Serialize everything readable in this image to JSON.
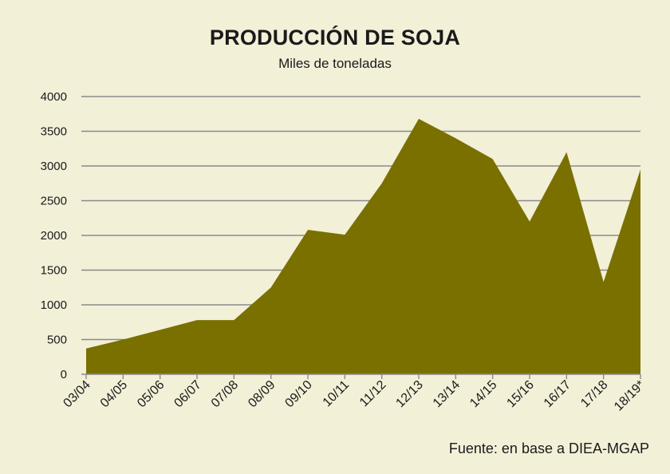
{
  "chart_data": {
    "type": "area",
    "title": "PRODUCCIÓN DE SOJA",
    "subtitle": "Miles de toneladas",
    "categories": [
      "03/04",
      "04/05",
      "05/06",
      "06/07",
      "07/08",
      "08/09",
      "09/10",
      "10/11",
      "11/12",
      "12/13",
      "13/14",
      "14/15",
      "15/16",
      "16/17",
      "17/18",
      "18/19*"
    ],
    "values": [
      370,
      500,
      640,
      780,
      780,
      1250,
      2080,
      2010,
      2750,
      3680,
      3400,
      3100,
      2200,
      3200,
      1330,
      2950
    ],
    "ylim": [
      0,
      4000
    ],
    "yticks": [
      0,
      500,
      1000,
      1500,
      2000,
      2500,
      3000,
      3500,
      4000
    ],
    "grid": true,
    "legend": "none",
    "source": "Fuente: en base a DIEA-MGAP",
    "colors": {
      "fill": "#7a7000",
      "grid": "#8a8a8a",
      "background": "#f3f0d8"
    }
  }
}
